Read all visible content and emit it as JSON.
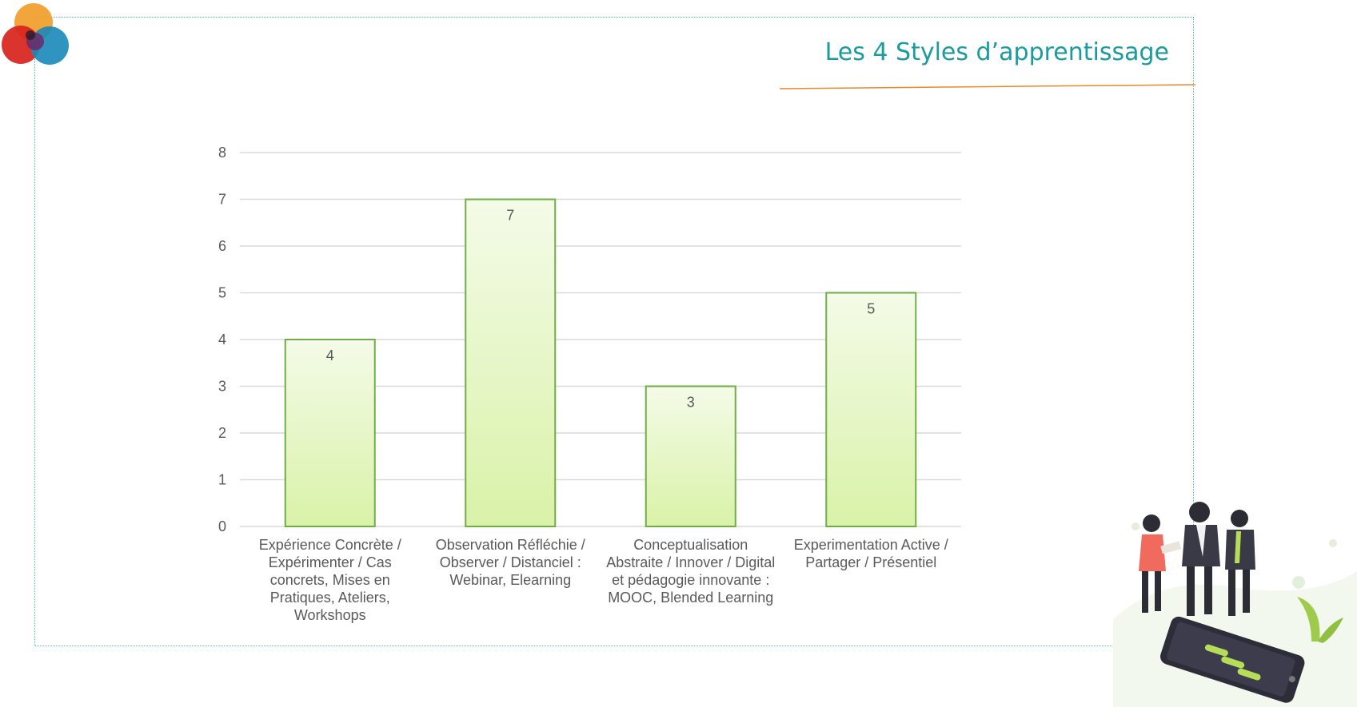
{
  "slide": {
    "title": "Les 4 Styles d’apprentissage",
    "accent_color": "#1a9ba0",
    "rule_color": "#e8892b",
    "frame_color": "#4fb8c6"
  },
  "chart_data": {
    "type": "bar",
    "categories": [
      [
        "Expérience Concrète /",
        "Expérimenter / Cas",
        "concrets, Mises en",
        "Pratiques, Ateliers,",
        "Workshops"
      ],
      [
        "Observation Réfléchie /",
        "Observer / Distanciel :",
        "Webinar, Elearning"
      ],
      [
        "Conceptualisation",
        "Abstraite / Innover / Digital",
        "et pédagogie innovante :",
        "MOOC, Blended Learning"
      ],
      [
        "Experimentation Active /",
        "Partager / Présentiel"
      ]
    ],
    "values": [
      4,
      7,
      3,
      5
    ],
    "data_labels": [
      "4",
      "7",
      "3",
      "5"
    ],
    "y_ticks": [
      "0",
      "1",
      "2",
      "3",
      "4",
      "5",
      "6",
      "7",
      "8"
    ],
    "ylim": [
      0,
      8
    ],
    "grid": true,
    "legend": "none",
    "bar_fill_top": "#f4fbe8",
    "bar_fill_bottom": "#d9f2a8",
    "bar_stroke": "#70ad47",
    "grid_color": "#d9d9d9"
  }
}
